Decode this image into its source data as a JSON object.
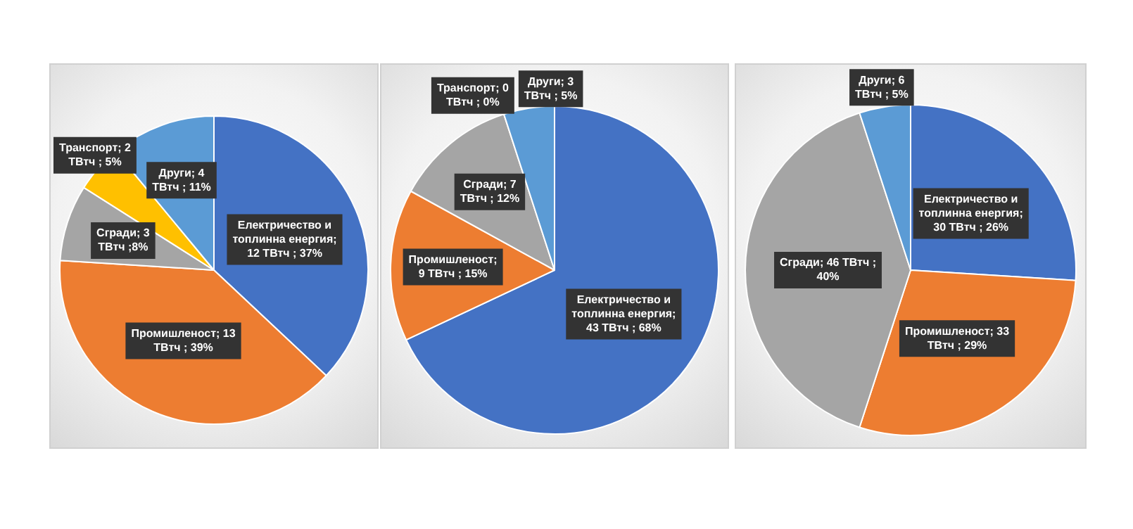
{
  "chart_data": [
    {
      "type": "pie",
      "categories": [
        "Електричество и топлинна енергия",
        "Промишленост",
        "Сгради",
        "Транспорт",
        "Други"
      ],
      "values": [
        37,
        39,
        8,
        5,
        11
      ],
      "colors": [
        "#4472c4",
        "#ed7d31",
        "#a5a5a5",
        "#ffc000",
        "#5b9bd5"
      ],
      "value_labels": [
        "; 12 ТВтч ; 37%",
        "; 13 ТВтч ; 39%",
        "; 3 ТВтч ;8%",
        "; 2 ТВтч ; 5%",
        "; 4 ТВтч ; 11%"
      ]
    },
    {
      "type": "pie",
      "categories": [
        "Електричество и топлинна енергия",
        "Промишленост",
        "Сгради",
        "Транспорт",
        "Други"
      ],
      "values": [
        68,
        15,
        12,
        0,
        5
      ],
      "colors": [
        "#4472c4",
        "#ed7d31",
        "#a5a5a5",
        "#ffc000",
        "#5b9bd5"
      ],
      "value_labels": [
        "; 43 ТВтч ; 68%",
        "; 9 ТВтч ; 15%",
        "; 7 ТВтч ; 12%",
        "; 0 ТВтч ; 0%",
        "; 3 ТВтч ; 5%"
      ]
    },
    {
      "type": "pie",
      "categories": [
        "Електричество и топлинна енергия",
        "Промишленост",
        "Сгради",
        "Други"
      ],
      "values": [
        26,
        29,
        40,
        5
      ],
      "colors": [
        "#4472c4",
        "#ed7d31",
        "#a5a5a5",
        "#5b9bd5"
      ],
      "value_labels": [
        "; 30 ТВтч ; 26%",
        "; 33 ТВтч ; 29%",
        "; 46 ТВтч ; 40%",
        "; 6 ТВтч ; 5%"
      ]
    }
  ]
}
